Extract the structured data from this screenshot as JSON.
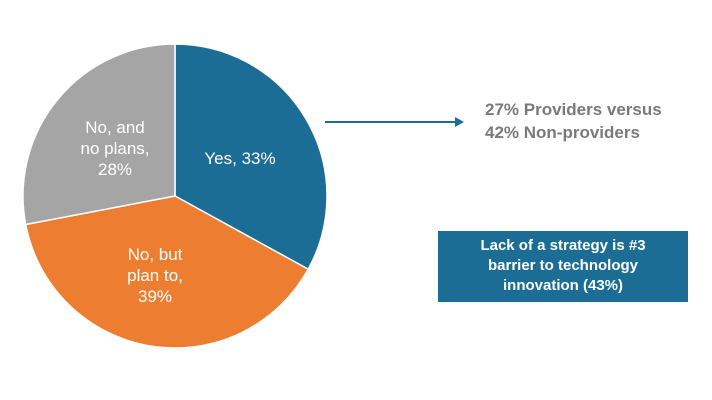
{
  "chart_data": {
    "type": "pie",
    "title": "",
    "slices": [
      {
        "label": "Yes, 33%",
        "value": 33,
        "color": "#1c6d96"
      },
      {
        "label": "No, but\nplan to,\n39%",
        "value": 39,
        "color": "#ed7d31"
      },
      {
        "label": "No, and\nno plans,\n28%",
        "value": 28,
        "color": "#a5a5a5"
      }
    ]
  },
  "callout": {
    "line1": "27% Providers versus",
    "line2": "42% Non-providers",
    "text_color": "#7a7a7a",
    "arrow_color": "#1c6d96"
  },
  "barrier_box": {
    "line1": "Lack of a strategy is #3",
    "line2": "barrier to technology",
    "line3": "innovation (43%)",
    "background": "#1c6d96"
  }
}
